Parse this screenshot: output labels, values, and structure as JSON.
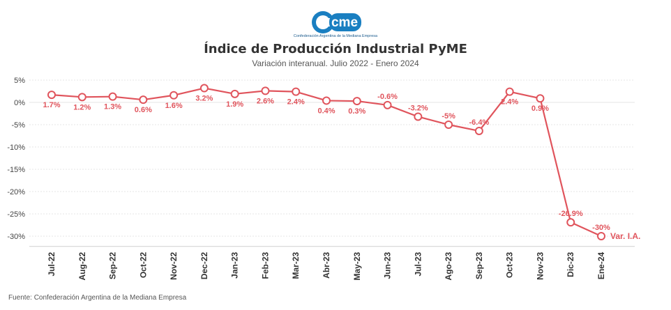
{
  "logo": {
    "text": "cme",
    "tagline": "Confederación Argentina de la Mediana Empresa",
    "color": "#1a7fc1"
  },
  "title": "Índice de Producción Industrial PyME",
  "subtitle": "Variación interanual. Julio 2022 - Enero 2024",
  "source": "Fuente: Confederación Argentina de la Mediana Empresa",
  "chart_data": {
    "type": "line",
    "title": "Índice de Producción Industrial PyME",
    "subtitle": "Variación interanual. Julio 2022 - Enero 2024",
    "categories": [
      "Jul-22",
      "Aug-22",
      "Sep-22",
      "Oct-22",
      "Nov-22",
      "Dec-22",
      "Jan-23",
      "Feb-23",
      "Mar-23",
      "Abr-23",
      "May-23",
      "Jun-23",
      "Jul-23",
      "Ago-23",
      "Sep-23",
      "Oct-23",
      "Nov-23",
      "Dic-23",
      "Ene-24"
    ],
    "series": [
      {
        "name": "Var. I.A.",
        "color": "#e0545c",
        "values": [
          1.7,
          1.2,
          1.3,
          0.6,
          1.6,
          3.2,
          1.9,
          2.6,
          2.4,
          0.4,
          0.3,
          -0.6,
          -3.2,
          -5,
          -6.4,
          2.4,
          0.9,
          -26.9,
          -30
        ],
        "labels": [
          "1.7%",
          "1.2%",
          "1.3%",
          "0.6%",
          "1.6%",
          "3.2%",
          "1.9%",
          "2.6%",
          "2.4%",
          "0.4%",
          "0.3%",
          "-0.6%",
          "-3.2%",
          "-5%",
          "-6.4%",
          "2.4%",
          "0.9%",
          "-26.9%",
          "-30%"
        ],
        "label_position": [
          "below",
          "below",
          "below",
          "below",
          "below",
          "below",
          "below",
          "below",
          "below",
          "below",
          "below",
          "above",
          "above",
          "above",
          "above",
          "below",
          "below",
          "above",
          "above"
        ]
      }
    ],
    "yticks": [
      5,
      0,
      -5,
      -10,
      -15,
      -20,
      -25,
      -30
    ],
    "ytick_labels": [
      "5%",
      "0%",
      "-5%",
      "-10%",
      "-15%",
      "-20%",
      "-25%",
      "-30%"
    ],
    "ylim": [
      -32,
      5
    ],
    "grid": true,
    "legend": "series label at end of line"
  }
}
